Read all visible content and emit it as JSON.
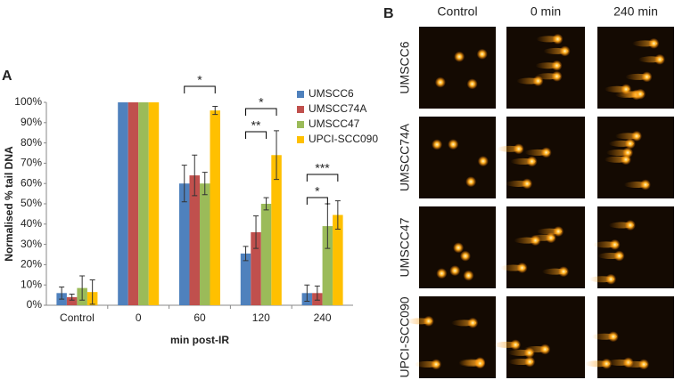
{
  "chart_data": {
    "type": "bar",
    "panel_label": "A",
    "ylabel": "Normalised % tail DNA",
    "xlabel": "min post-IR",
    "categories": [
      "Control",
      "0",
      "60",
      "120",
      "240"
    ],
    "series": [
      {
        "name": "UMSCC6",
        "color": "#4f81bd",
        "values": [
          6,
          100,
          60,
          25.5,
          6
        ],
        "errors": [
          3,
          0,
          9,
          3.5,
          4
        ]
      },
      {
        "name": "UMSCC74A",
        "color": "#c0504d",
        "values": [
          4,
          100,
          64,
          36,
          6
        ],
        "errors": [
          1.5,
          0,
          10,
          8,
          3.5
        ]
      },
      {
        "name": "UMSCC47",
        "color": "#9bbb59",
        "values": [
          8.5,
          100,
          60,
          50,
          39
        ],
        "errors": [
          6,
          0,
          5.5,
          3,
          11
        ]
      },
      {
        "name": "UPCI-SCC090",
        "color": "#ffc000",
        "values": [
          6.5,
          100,
          96,
          74,
          44.5
        ],
        "errors": [
          6,
          0,
          2,
          12,
          7
        ]
      }
    ],
    "ylim": [
      0,
      100
    ],
    "yticks": [
      {
        "value": 0,
        "label": "0%"
      },
      {
        "value": 10,
        "label": "10%"
      },
      {
        "value": 20,
        "label": "20%"
      },
      {
        "value": 30,
        "label": "30%"
      },
      {
        "value": 40,
        "label": "40%"
      },
      {
        "value": 50,
        "label": "50%"
      },
      {
        "value": 60,
        "label": "60%"
      },
      {
        "value": 70,
        "label": "70%"
      },
      {
        "value": 80,
        "label": "80%"
      },
      {
        "value": 90,
        "label": "90%"
      },
      {
        "value": 100,
        "label": "100%"
      }
    ],
    "legend": "upper right",
    "annotations": [
      "*",
      "*",
      "**",
      "***",
      "*"
    ]
  },
  "panel_b": {
    "label": "B",
    "columns": [
      "Control",
      "0 min",
      "240 min"
    ],
    "rows": [
      "UMSCC6",
      "UMSCC74A",
      "UMSCC47",
      "UPCI-SCC090"
    ]
  }
}
